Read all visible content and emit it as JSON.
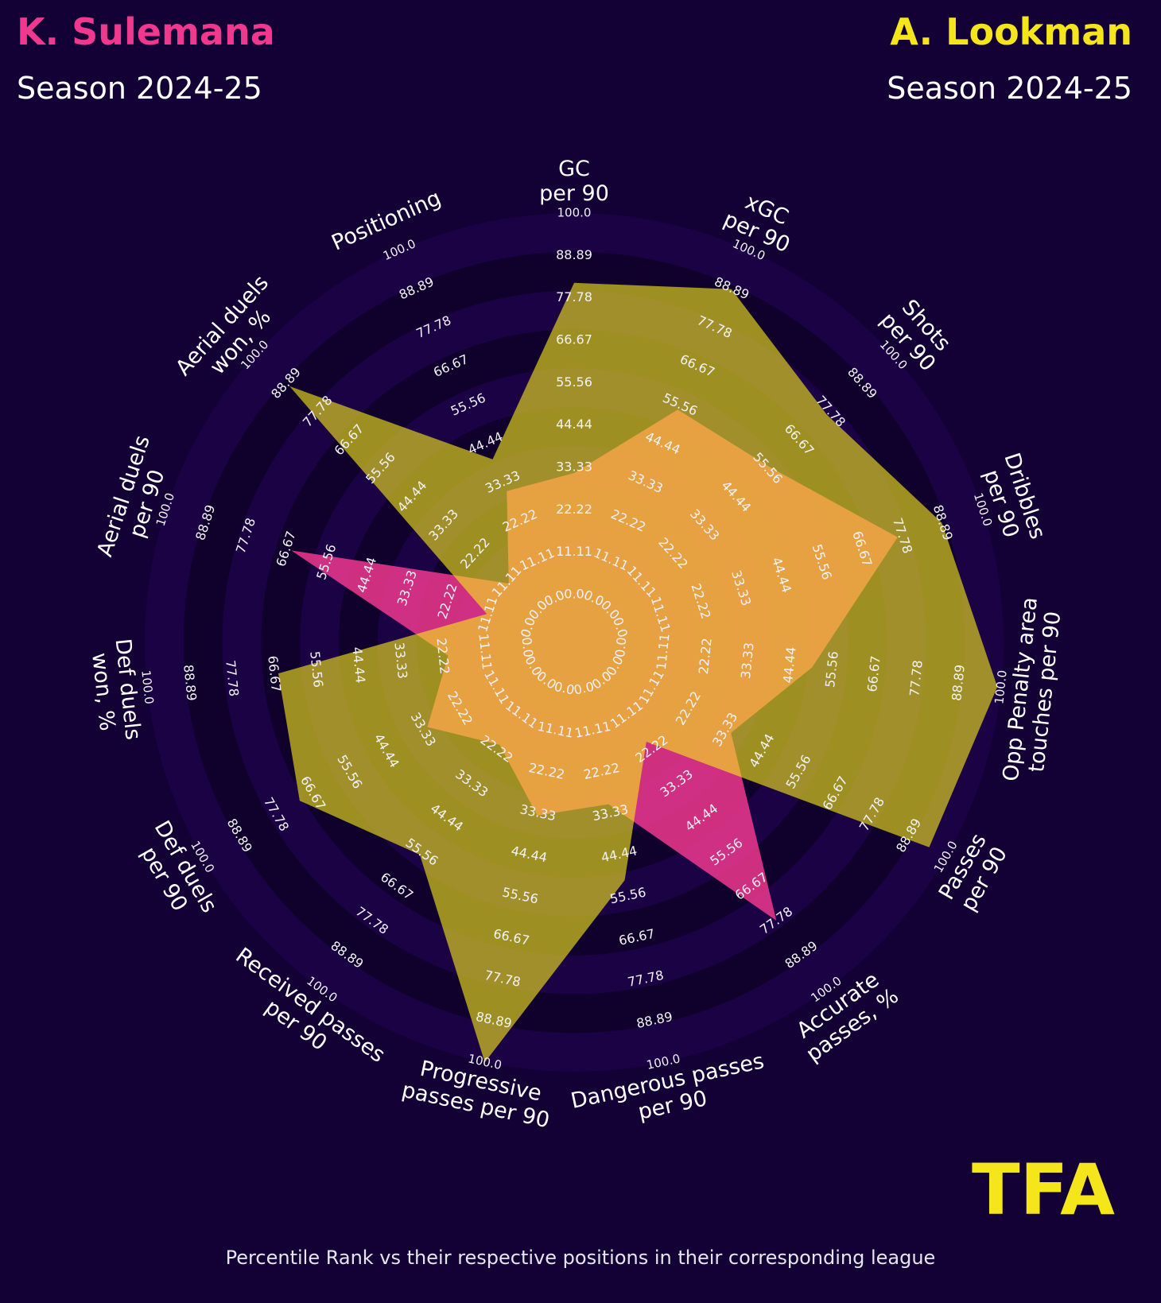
{
  "header": {
    "player1_name": "K. Sulemana",
    "player1_season": "Season 2024-25",
    "player2_name": "A. Lookman",
    "player2_season": "Season 2024-25"
  },
  "footer": "Percentile Rank vs their respective positions in their corresponding league",
  "logo_text": "TFA",
  "colors": {
    "background": "#130136",
    "player1": "#f0388e",
    "player2": "#f5e61c",
    "ring_dark": "#0f012b",
    "ring_light": "#1a0245"
  },
  "chart_data": {
    "type": "radar",
    "scale_labels": [
      "0.0",
      "11.11",
      "22.22",
      "33.33",
      "44.44",
      "55.56",
      "66.67",
      "77.78",
      "88.89",
      "100.0"
    ],
    "axes": [
      "GC\nper 90",
      "xGC\nper 90",
      "Shots\nper 90",
      "Dribbles\nper 90",
      "Opp Penalty area\ntouches per 90",
      "Passes\nper 90",
      "Accurate\npasses, %",
      "Dangerous passes\nper 90",
      "Progressive\npasses per 90",
      "Received passes\nper 90",
      "Def duels\nper 90",
      "Def duels\nwon, %",
      "Aerial duels\nper 90",
      "Aerial duels\nwon, %",
      "Positioning"
    ],
    "series": [
      {
        "name": "K. Sulemana",
        "values": [
          33,
          55,
          57,
          77,
          51,
          36,
          78,
          32,
          35,
          22,
          33,
          22,
          66,
          12,
          32
        ]
      },
      {
        "name": "A. Lookman",
        "values": [
          82,
          89,
          77,
          89,
          99,
          95,
          21,
          52,
          100,
          57,
          71,
          66,
          13,
          88,
          41
        ]
      }
    ],
    "range": [
      0,
      100
    ],
    "legend": "header"
  }
}
